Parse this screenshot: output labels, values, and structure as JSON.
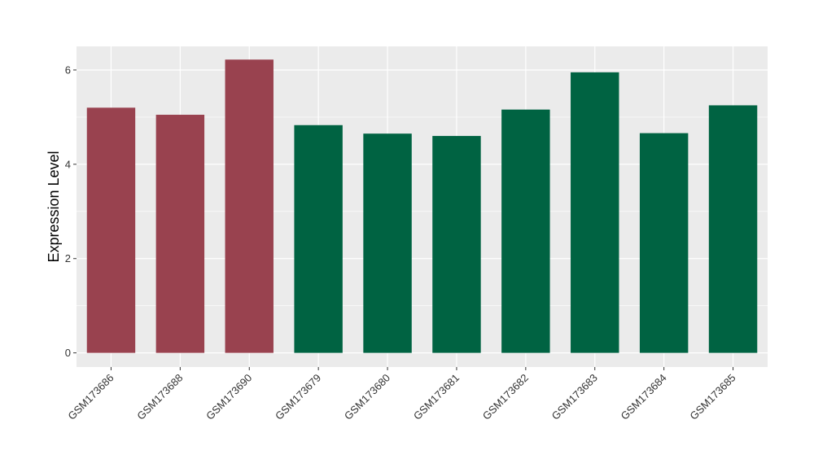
{
  "chart_data": {
    "type": "bar",
    "title": "",
    "xlabel": "",
    "ylabel": "Expression Level",
    "ylim": [
      -0.3,
      6.5
    ],
    "yticks": [
      0,
      2,
      4,
      6
    ],
    "grid": true,
    "categories": [
      "GSM173686",
      "GSM173688",
      "GSM173690",
      "GSM173679",
      "GSM173680",
      "GSM173681",
      "GSM173682",
      "GSM173683",
      "GSM173684",
      "GSM173685"
    ],
    "values": [
      5.2,
      5.05,
      6.22,
      4.83,
      4.65,
      4.6,
      5.16,
      5.95,
      4.66,
      5.25
    ],
    "colors": [
      "#99424F",
      "#99424F",
      "#99424F",
      "#006342",
      "#006342",
      "#006342",
      "#006342",
      "#006342",
      "#006342",
      "#006342"
    ],
    "panel_background": "#EBEBEB",
    "grid_color": "#FFFFFF"
  }
}
